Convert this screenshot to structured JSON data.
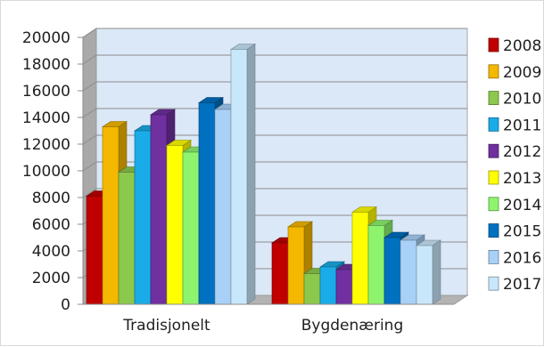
{
  "chart_data": {
    "type": "bar",
    "title": "",
    "xlabel": "",
    "ylabel": "",
    "categories": [
      "Tradisjonelt",
      "Bygdenæring"
    ],
    "ylim": [
      0,
      20000
    ],
    "yticks": [
      0,
      2000,
      4000,
      6000,
      8000,
      10000,
      12000,
      14000,
      16000,
      18000,
      20000
    ],
    "grid": true,
    "legend_position": "right",
    "series": [
      {
        "name": "2008",
        "color": "#c00000",
        "values": [
          8100,
          4600
        ]
      },
      {
        "name": "2009",
        "color": "#f5b800",
        "values": [
          13300,
          5800
        ]
      },
      {
        "name": "2010",
        "color": "#8cc84b",
        "values": [
          9900,
          2300
        ]
      },
      {
        "name": "2011",
        "color": "#1aace8",
        "values": [
          13000,
          2800
        ]
      },
      {
        "name": "2012",
        "color": "#7030a0",
        "values": [
          14200,
          2600
        ]
      },
      {
        "name": "2013",
        "color": "#ffff00",
        "values": [
          11900,
          6900
        ]
      },
      {
        "name": "2014",
        "color": "#8ef46e",
        "values": [
          11400,
          5900
        ]
      },
      {
        "name": "2015",
        "color": "#0070c0",
        "values": [
          15100,
          5000
        ]
      },
      {
        "name": "2016",
        "color": "#a9d1f7",
        "values": [
          14600,
          4800
        ]
      },
      {
        "name": "2017",
        "color": "#c9e7fb",
        "values": [
          19100,
          4400
        ]
      }
    ]
  }
}
